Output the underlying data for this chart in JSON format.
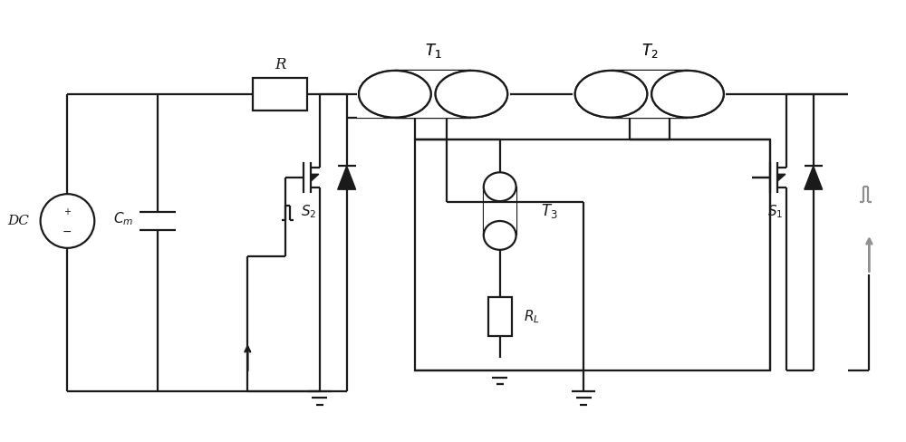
{
  "line_color": "#1a1a1a",
  "gray_color": "#909090",
  "bg_color": "#ffffff",
  "lw": 1.6,
  "lw_thick": 2.0,
  "figsize": [
    10.0,
    4.88
  ],
  "dpi": 100,
  "xmax": 10.0,
  "ymax": 4.88
}
